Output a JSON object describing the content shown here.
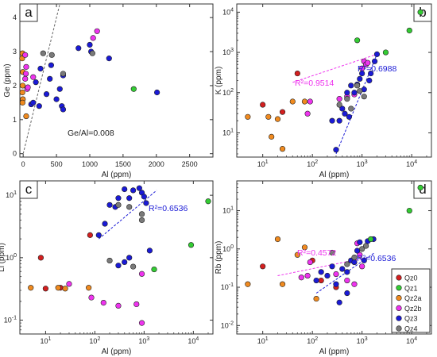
{
  "colors": {
    "Qz0": "#d31f1f",
    "Qz1": "#33cc33",
    "Qz2a": "#f08a1f",
    "Qz2b": "#ee33ee",
    "Qz3": "#1a1ad6",
    "Qz4": "#7a7a7a",
    "magenta_fit": "#ee33ee",
    "blue_fit": "#1a1ad6"
  },
  "legend": [
    "Qz0",
    "Qz1",
    "Qz2a",
    "Qz2b",
    "Qz3",
    "Qz4"
  ],
  "chart_data": [
    {
      "panel": "a",
      "type": "scatter",
      "xlabel": "Al  (ppm)",
      "ylabel": "Ge  (ppm)",
      "xscale": "linear",
      "yscale": "linear",
      "xlim": [
        -50,
        2850
      ],
      "ylim": [
        -0.1,
        4.4
      ],
      "xticks": [
        "0",
        "500",
        "1000",
        "1500",
        "2000",
        "2500"
      ],
      "yticks": [
        "0",
        "1",
        "2",
        "3",
        "4"
      ],
      "annotations": [
        {
          "text": "Ge/Al=0.008",
          "color": "#222"
        }
      ],
      "trend_lines": [
        {
          "kind": "ratio",
          "slope": 0.008,
          "color": "#666"
        }
      ],
      "series": [
        {
          "name": "Qz2a",
          "points": [
            [
              -10,
              2.95
            ],
            [
              -15,
              2.8
            ],
            [
              -5,
              2.4
            ],
            [
              -8,
              2.0
            ],
            [
              -12,
              1.8
            ],
            [
              -5,
              1.6
            ],
            [
              45,
              1.1
            ],
            [
              -10,
              1.5
            ]
          ]
        },
        {
          "name": "Qz2b",
          "points": [
            [
              30,
              2.9
            ],
            [
              45,
              2.55
            ],
            [
              40,
              2.35
            ],
            [
              30,
              2.2
            ],
            [
              60,
              1.9
            ],
            [
              70,
              1.95
            ],
            [
              150,
              2.25
            ],
            [
              1050,
              3.4
            ],
            [
              1110,
              3.6
            ]
          ]
        },
        {
          "name": "Qz3",
          "points": [
            [
              120,
              1.45
            ],
            [
              150,
              1.5
            ],
            [
              190,
              2.1
            ],
            [
              260,
              2.5
            ],
            [
              240,
              1.4
            ],
            [
              400,
              2.2
            ],
            [
              420,
              2.6
            ],
            [
              500,
              1.6
            ],
            [
              600,
              2.3
            ],
            [
              550,
              1.9
            ],
            [
              580,
              1.4
            ],
            [
              600,
              1.3
            ],
            [
              830,
              3.1
            ],
            [
              1000,
              3.2
            ],
            [
              1020,
              3.0
            ],
            [
              1290,
              2.8
            ],
            [
              2010,
              1.8
            ],
            [
              350,
              1.75
            ]
          ]
        },
        {
          "name": "Qz4",
          "points": [
            [
              300,
              2.95
            ],
            [
              430,
              2.9
            ],
            [
              600,
              2.35
            ],
            [
              1040,
              2.95
            ]
          ]
        },
        {
          "name": "Qz1",
          "points": [
            [
              1660,
              1.9
            ]
          ]
        }
      ]
    },
    {
      "panel": "b",
      "type": "scatter",
      "xlabel": "Al  (ppm)",
      "ylabel": "K  (ppm)",
      "xscale": "log",
      "yscale": "log",
      "xlim": [
        3,
        25000
      ],
      "ylim": [
        2.5,
        16000
      ],
      "xticks": [
        "10^0",
        "10^1",
        "10^2",
        "10^3",
        "10^4"
      ],
      "yticks": [
        "10^1",
        "10^2",
        "10^3",
        "10^4"
      ],
      "annotations": [
        {
          "text": "R²=0.9514",
          "color": "#ee33ee"
        },
        {
          "text": "R²=0.6988",
          "color": "#1a1ad6"
        }
      ],
      "trend_lines": [
        {
          "from": [
            40,
            180
          ],
          "to": [
            2000,
            900
          ],
          "color": "#ee33ee"
        },
        {
          "from": [
            300,
            3
          ],
          "to": [
            2000,
            900
          ],
          "color": "#1a1ad6"
        }
      ],
      "series": [
        {
          "name": "Qz0",
          "points": [
            [
              10,
              50
            ],
            [
              25,
              33
            ],
            [
              50,
              300
            ]
          ]
        },
        {
          "name": "Qz2a",
          "points": [
            [
              5,
              25
            ],
            [
              13,
              25
            ],
            [
              20,
              22
            ],
            [
              25,
              4
            ],
            [
              15,
              8
            ],
            [
              40,
              60
            ],
            [
              70,
              60
            ]
          ]
        },
        {
          "name": "Qz2b",
          "points": [
            [
              80,
              30
            ],
            [
              90,
              60
            ],
            [
              350,
              70
            ],
            [
              500,
              80
            ],
            [
              700,
              90
            ],
            [
              1000,
              400
            ],
            [
              1100,
              600
            ],
            [
              1200,
              500
            ],
            [
              1300,
              550
            ]
          ]
        },
        {
          "name": "Qz3",
          "points": [
            [
              300,
              3.8
            ],
            [
              350,
              20
            ],
            [
              400,
              40
            ],
            [
              450,
              30
            ],
            [
              500,
              100
            ],
            [
              600,
              150
            ],
            [
              700,
              100
            ],
            [
              800,
              160
            ],
            [
              900,
              220
            ],
            [
              1000,
              300
            ],
            [
              1100,
              120
            ],
            [
              1400,
              200
            ],
            [
              1500,
              300
            ],
            [
              1800,
              600
            ],
            [
              2000,
              900
            ],
            [
              250,
              20
            ],
            [
              550,
              25
            ]
          ]
        },
        {
          "name": "Qz4",
          "points": [
            [
              350,
              50
            ],
            [
              500,
              70
            ],
            [
              600,
              40
            ],
            [
              800,
              150
            ],
            [
              900,
              110
            ],
            [
              1100,
              80
            ]
          ]
        },
        {
          "name": "Qz1",
          "points": [
            [
              800,
              2000
            ],
            [
              3000,
              1000
            ],
            [
              9000,
              3500
            ],
            [
              15000,
              10000
            ]
          ]
        }
      ]
    },
    {
      "panel": "c",
      "type": "scatter",
      "xlabel": "Al  (ppm)",
      "ylabel": "Li  (ppm)",
      "xscale": "log",
      "yscale": "log",
      "xlim": [
        3,
        25000
      ],
      "ylim": [
        0.06,
        17
      ],
      "xticks": [
        "10^1",
        "10^2",
        "10^3",
        "10^4"
      ],
      "yticks": [
        "10^-1",
        "10^0",
        "10^1"
      ],
      "annotations": [
        {
          "text": "R²=0.6536",
          "color": "#1a1ad6"
        }
      ],
      "trend_lines": [
        {
          "from": [
            120,
            2
          ],
          "to": [
            1800,
            12
          ],
          "color": "#1a1ad6"
        }
      ],
      "series": [
        {
          "name": "Qz0",
          "points": [
            [
              8,
              1.0
            ],
            [
              10,
              0.32
            ],
            [
              20,
              0.33
            ],
            [
              80,
              2.3
            ]
          ]
        },
        {
          "name": "Qz2a",
          "points": [
            [
              5,
              0.33
            ],
            [
              18,
              0.33
            ],
            [
              25,
              0.32
            ],
            [
              75,
              0.33
            ]
          ]
        },
        {
          "name": "Qz2b",
          "points": [
            [
              30,
              0.38
            ],
            [
              85,
              0.23
            ],
            [
              150,
              0.19
            ],
            [
              300,
              0.17
            ],
            [
              700,
              0.18
            ],
            [
              900,
              0.55
            ],
            [
              900,
              0.09
            ]
          ]
        },
        {
          "name": "Qz3",
          "points": [
            [
              120,
              2.3
            ],
            [
              160,
              3.5
            ],
            [
              200,
              7.0
            ],
            [
              260,
              6.5
            ],
            [
              300,
              9.0
            ],
            [
              400,
              12.5
            ],
            [
              500,
              9.0
            ],
            [
              600,
              12.0
            ],
            [
              800,
              13.0
            ],
            [
              900,
              11.0
            ],
            [
              1000,
              9.5
            ],
            [
              1100,
              7.5
            ],
            [
              400,
              0.85
            ],
            [
              500,
              1.0
            ],
            [
              300,
              0.75
            ],
            [
              1300,
              1.3
            ]
          ]
        },
        {
          "name": "Qz4",
          "points": [
            [
              300,
              7.0
            ],
            [
              500,
              6.5
            ],
            [
              600,
              0.72
            ],
            [
              900,
              5.0
            ],
            [
              900,
              4.0
            ],
            [
              200,
              0.9
            ]
          ]
        },
        {
          "name": "Qz1",
          "points": [
            [
              1600,
              0.65
            ],
            [
              9000,
              1.6
            ],
            [
              20000,
              8.0
            ]
          ]
        }
      ]
    },
    {
      "panel": "d",
      "type": "scatter",
      "xlabel": "Al  (ppm)",
      "ylabel": "Rb  (ppm)",
      "xscale": "log",
      "yscale": "log",
      "xlim": [
        3,
        25000
      ],
      "ylim": [
        0.006,
        60
      ],
      "xticks": [
        "10^0",
        "10^1",
        "10^2",
        "10^3",
        "10^4"
      ],
      "yticks": [
        "10^-2",
        "10^-1",
        "10^0",
        "10^1"
      ],
      "annotations": [
        {
          "text": "R²=0.4572",
          "color": "#ee33ee"
        },
        {
          "text": "R²=0.6536",
          "color": "#1a1ad6"
        }
      ],
      "trend_lines": [
        {
          "from": [
            20,
            0.2
          ],
          "to": [
            1300,
            0.6
          ],
          "color": "#ee33ee"
        },
        {
          "from": [
            120,
            0.07
          ],
          "to": [
            1800,
            0.8
          ],
          "color": "#1a1ad6"
        }
      ],
      "series": [
        {
          "name": "Qz0",
          "points": [
            [
              10,
              0.35
            ],
            [
              100,
              0.5
            ],
            [
              150,
              0.15
            ],
            [
              300,
              0.1
            ]
          ]
        },
        {
          "name": "Qz2a",
          "points": [
            [
              5,
              0.12
            ],
            [
              20,
              1.8
            ],
            [
              25,
              0.12
            ],
            [
              50,
              0.7
            ],
            [
              70,
              1.1
            ],
            [
              120,
              0.05
            ]
          ]
        },
        {
          "name": "Qz2b",
          "points": [
            [
              60,
              0.18
            ],
            [
              80,
              0.2
            ],
            [
              90,
              0.45
            ],
            [
              300,
              0.22
            ],
            [
              500,
              0.15
            ],
            [
              700,
              0.12
            ],
            [
              800,
              1.4
            ],
            [
              900,
              0.7
            ],
            [
              1000,
              0.35
            ]
          ]
        },
        {
          "name": "Qz3",
          "points": [
            [
              120,
              0.15
            ],
            [
              150,
              0.25
            ],
            [
              200,
              0.2
            ],
            [
              250,
              0.35
            ],
            [
              300,
              0.12
            ],
            [
              350,
              0.04
            ],
            [
              400,
              0.3
            ],
            [
              500,
              0.25
            ],
            [
              600,
              0.5
            ],
            [
              700,
              0.45
            ],
            [
              800,
              0.9
            ],
            [
              900,
              1.5
            ],
            [
              1100,
              0.5
            ],
            [
              1300,
              1.6
            ],
            [
              1700,
              1.8
            ],
            [
              500,
              0.07
            ]
          ]
        },
        {
          "name": "Qz4",
          "points": [
            [
              250,
              0.8
            ],
            [
              500,
              0.4
            ],
            [
              700,
              0.6
            ],
            [
              1000,
              1.0
            ],
            [
              1200,
              1.2
            ]
          ]
        },
        {
          "name": "Qz1",
          "points": [
            [
              1500,
              1.8
            ],
            [
              9000,
              10
            ],
            [
              15000,
              40
            ]
          ]
        }
      ]
    }
  ]
}
